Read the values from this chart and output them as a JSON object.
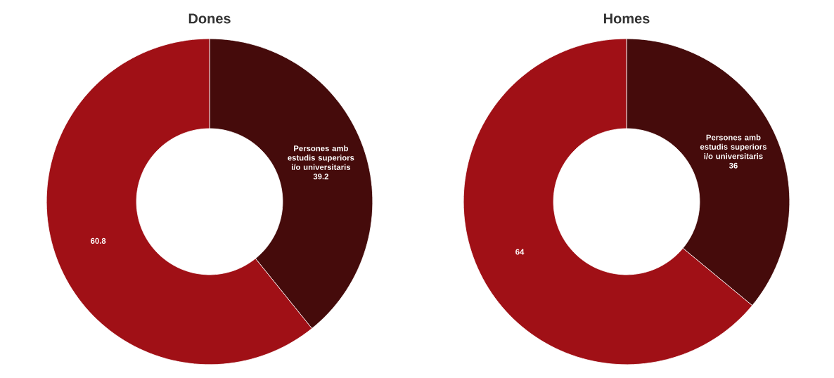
{
  "chart_data": [
    {
      "type": "donut",
      "title": "Dones",
      "categories": [
        "Persones amb estudis superiors i/o universitaris",
        null
      ],
      "values": [
        39.2,
        60.8
      ],
      "colors": [
        "#450b0b",
        "#a01016"
      ],
      "data_labels": true
    },
    {
      "type": "donut",
      "title": "Homes",
      "categories": [
        "Persones amb estudis superiors i/o universitaris",
        null
      ],
      "values": [
        36,
        64
      ],
      "colors": [
        "#450b0b",
        "#a01016"
      ],
      "data_labels": true
    }
  ]
}
